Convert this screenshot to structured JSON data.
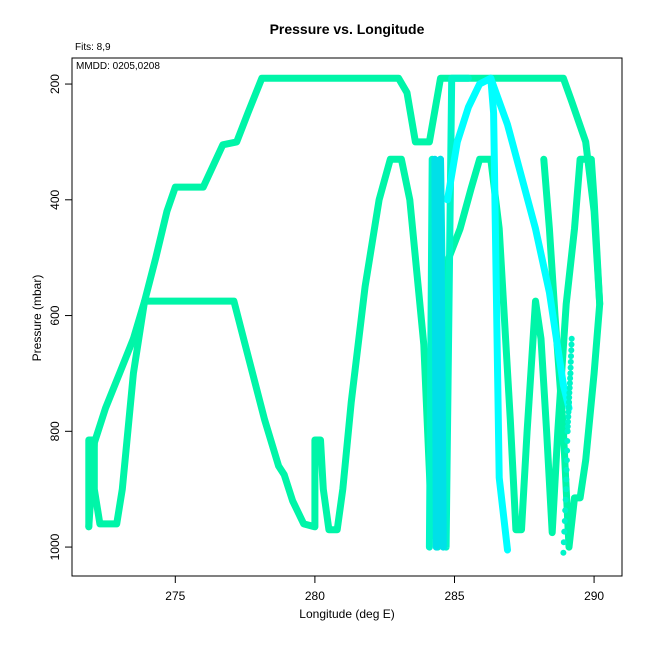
{
  "chart_data": {
    "type": "line",
    "title": "Pressure vs. Longitude",
    "annotations": {
      "fits": "Fits: 8,9",
      "mmdd": "MMDD: 0205,0208"
    },
    "xlabel": "Longitude (deg E)",
    "ylabel": "Pressure (mbar)",
    "xlim": [
      271.3,
      291.0
    ],
    "ylim": [
      1050,
      155
    ],
    "y_inverted": true,
    "grid": false,
    "xticks": [
      275,
      280,
      285,
      290
    ],
    "yticks": [
      200,
      400,
      600,
      800,
      1000
    ],
    "series": [
      {
        "color": "#00f5a8",
        "points": [
          [
            271.9,
            965
          ],
          [
            271.9,
            815
          ],
          [
            272.1,
            815
          ],
          [
            272.1,
            900
          ],
          [
            272.3,
            960
          ],
          [
            272.9,
            960
          ],
          [
            273.1,
            900
          ],
          [
            273.5,
            700
          ],
          [
            273.9,
            575
          ],
          [
            274.3,
            500
          ],
          [
            274.7,
            420
          ],
          [
            275.0,
            378
          ],
          [
            276.0,
            378
          ],
          [
            276.7,
            305
          ],
          [
            277.2,
            300
          ],
          [
            277.6,
            250
          ],
          [
            278.1,
            190
          ],
          [
            283.0,
            190
          ],
          [
            283.3,
            215
          ],
          [
            283.6,
            300
          ],
          [
            284.1,
            300
          ],
          [
            284.5,
            190
          ],
          [
            288.9,
            190
          ],
          [
            289.2,
            230
          ],
          [
            289.7,
            300
          ],
          [
            290.0,
            420
          ],
          [
            290.2,
            580
          ],
          [
            290.0,
            700
          ],
          [
            289.7,
            850
          ],
          [
            289.5,
            915
          ],
          [
            289.3,
            915
          ],
          [
            289.1,
            1000
          ],
          [
            288.9,
            800
          ],
          [
            288.6,
            600
          ],
          [
            288.4,
            450
          ],
          [
            288.2,
            330
          ]
        ]
      },
      {
        "color": "#00f5a8",
        "points": [
          [
            271.9,
            965
          ],
          [
            272.1,
            820
          ],
          [
            272.5,
            760
          ],
          [
            273.0,
            700
          ],
          [
            273.5,
            640
          ],
          [
            273.9,
            575
          ],
          [
            277.1,
            575
          ],
          [
            277.5,
            650
          ],
          [
            278.2,
            780
          ],
          [
            278.7,
            860
          ],
          [
            278.9,
            875
          ],
          [
            279.2,
            920
          ],
          [
            279.6,
            960
          ],
          [
            280.0,
            965
          ],
          [
            280.0,
            815
          ],
          [
            280.2,
            815
          ],
          [
            280.3,
            900
          ],
          [
            280.5,
            970
          ],
          [
            280.8,
            970
          ],
          [
            281.0,
            900
          ],
          [
            281.3,
            750
          ],
          [
            281.8,
            550
          ],
          [
            282.3,
            400
          ],
          [
            282.7,
            330
          ],
          [
            283.1,
            330
          ],
          [
            283.4,
            400
          ],
          [
            283.9,
            650
          ],
          [
            284.2,
            980
          ],
          [
            284.4,
            650
          ],
          [
            284.8,
            500
          ],
          [
            285.2,
            450
          ],
          [
            285.6,
            380
          ],
          [
            285.9,
            330
          ],
          [
            286.3,
            330
          ],
          [
            286.6,
            450
          ],
          [
            287.0,
            780
          ],
          [
            287.2,
            970
          ],
          [
            287.4,
            970
          ],
          [
            287.6,
            800
          ],
          [
            287.9,
            575
          ],
          [
            288.1,
            640
          ],
          [
            288.3,
            800
          ],
          [
            288.5,
            975
          ],
          [
            288.7,
            800
          ],
          [
            289.0,
            580
          ],
          [
            289.3,
            450
          ],
          [
            289.5,
            330
          ],
          [
            289.9,
            330
          ],
          [
            290.0,
            400
          ],
          [
            290.2,
            580
          ]
        ]
      },
      {
        "color": "#00f5c8",
        "points": [
          [
            284.1,
            1000
          ],
          [
            284.2,
            330
          ],
          [
            284.3,
            700
          ],
          [
            284.4,
            1000
          ],
          [
            284.5,
            330
          ],
          [
            284.7,
            1000
          ],
          [
            284.9,
            190
          ],
          [
            285.2,
            190
          ],
          [
            285.5,
            190
          ]
        ]
      },
      {
        "color": "#00ffff",
        "points": [
          [
            284.75,
            400
          ],
          [
            285.1,
            300
          ],
          [
            285.5,
            240
          ],
          [
            285.9,
            200
          ],
          [
            286.3,
            190
          ],
          [
            286.4,
            250
          ],
          [
            286.6,
            880
          ],
          [
            286.9,
            1005
          ]
        ]
      },
      {
        "color": "#00ffff",
        "points": [
          [
            286.3,
            190
          ],
          [
            286.9,
            270
          ],
          [
            287.4,
            360
          ],
          [
            287.9,
            450
          ],
          [
            288.4,
            560
          ],
          [
            288.9,
            720
          ],
          [
            289.1,
            760
          ]
        ]
      },
      {
        "color": "#00e0e8",
        "points": [
          [
            284.3,
            330
          ],
          [
            284.35,
            1000
          ],
          [
            284.5,
            330
          ],
          [
            284.6,
            1000
          ]
        ]
      }
    ],
    "dotted_segments": [
      {
        "color": "#00f5c8",
        "points": [
          [
            288.9,
            1010
          ],
          [
            289.0,
            900
          ],
          [
            289.05,
            800
          ],
          [
            289.1,
            750
          ],
          [
            289.15,
            700
          ],
          [
            289.2,
            640
          ]
        ]
      }
    ]
  }
}
